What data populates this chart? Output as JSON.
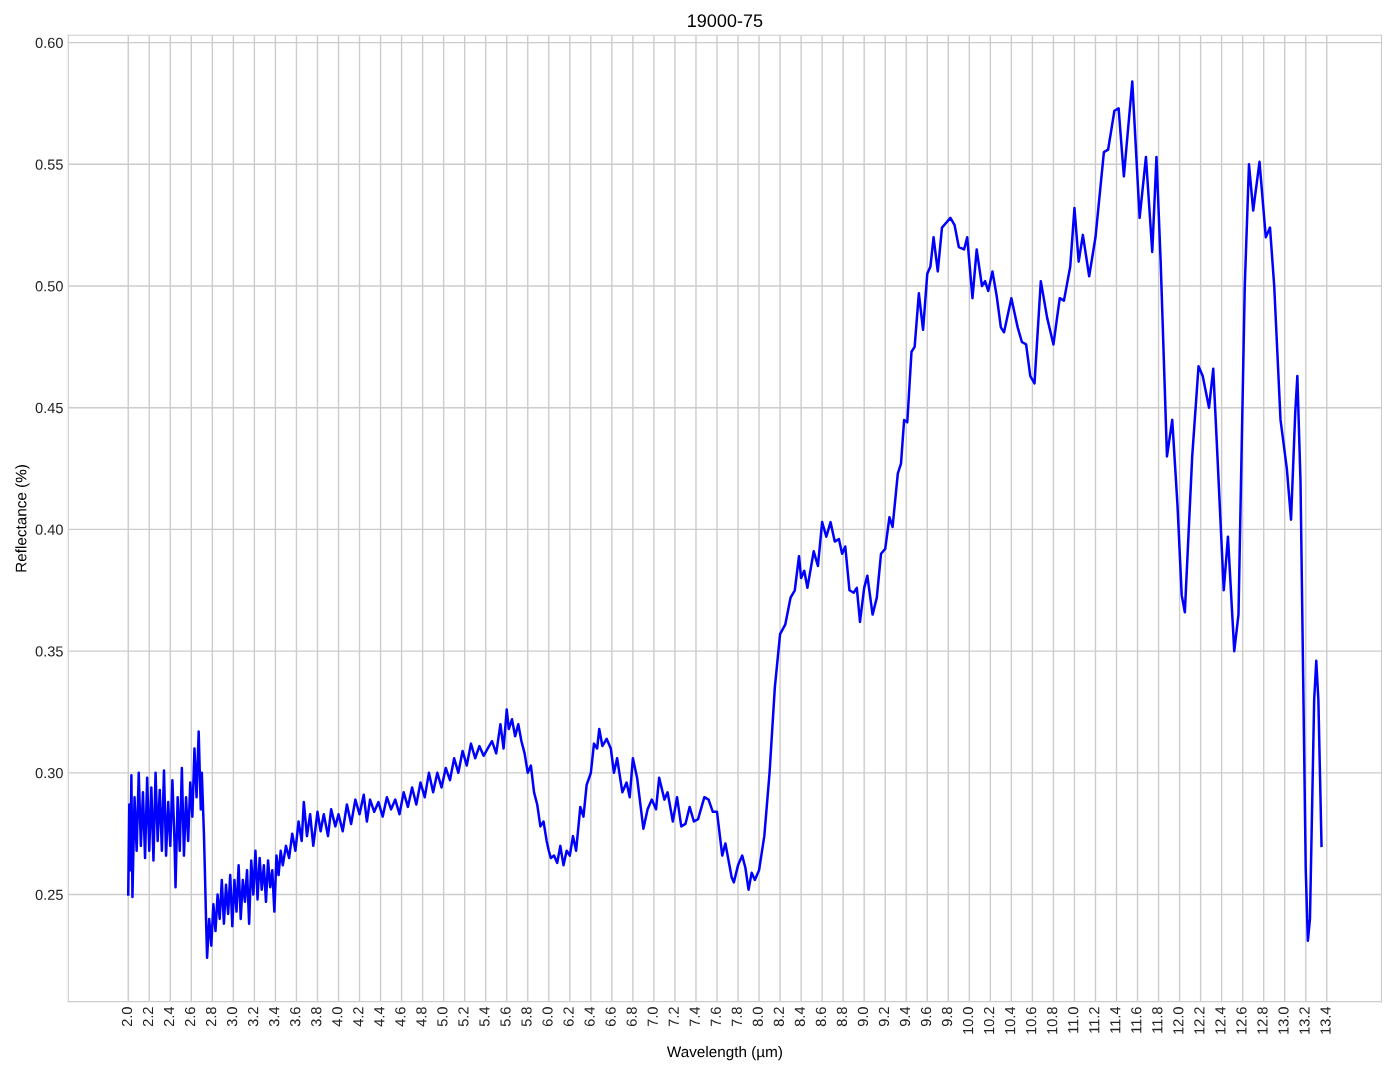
{
  "chart_data": {
    "type": "line",
    "title": "19000-75",
    "xlabel": "Wavelength (µm)",
    "ylabel": "Reflectance (%)",
    "xlim": [
      1.43,
      13.92
    ],
    "ylim": [
      0.206,
      0.603
    ],
    "xticks": [
      {
        "value": 2,
        "label": "2.0"
      },
      2.2,
      2.4,
      2.6,
      2.8,
      {
        "value": 3,
        "label": "3.0"
      },
      3.2,
      3.4,
      3.6,
      3.8,
      {
        "value": 4,
        "label": "4.0"
      },
      4.2,
      4.4,
      4.6,
      4.8,
      {
        "value": 5,
        "label": "5.0"
      },
      5.2,
      5.4,
      5.6,
      5.8,
      {
        "value": 6,
        "label": "6.0"
      },
      6.2,
      6.4,
      6.6,
      6.8,
      {
        "value": 7,
        "label": "7.0"
      },
      7.2,
      7.4,
      7.6,
      7.8,
      {
        "value": 8,
        "label": "8.0"
      },
      8.2,
      8.4,
      8.6,
      8.8,
      {
        "value": 9,
        "label": "9.0"
      },
      9.2,
      9.4,
      9.6,
      9.8,
      {
        "value": 10,
        "label": "10.0"
      },
      10.2,
      10.4,
      10.6,
      10.8,
      {
        "value": 11,
        "label": "11.0"
      },
      11.2,
      11.4,
      11.6,
      11.8,
      {
        "value": 12,
        "label": "12.0"
      },
      12.2,
      12.4,
      12.6,
      12.8,
      {
        "value": 13,
        "label": "13.0"
      },
      13.2,
      13.4
    ],
    "yticks": [
      {
        "value": 0.25,
        "label": "0.25"
      },
      {
        "value": 0.3,
        "label": "0.30"
      },
      {
        "value": 0.35,
        "label": "0.35"
      },
      {
        "value": 0.4,
        "label": "0.40"
      },
      {
        "value": 0.45,
        "label": "0.45"
      },
      {
        "value": 0.5,
        "label": "0.50"
      },
      {
        "value": 0.55,
        "label": "0.55"
      },
      {
        "value": 0.6,
        "label": "0.60"
      }
    ],
    "grid": true,
    "legend": false,
    "marker": "none",
    "line_style": "solid",
    "series": [
      {
        "color": "#0000ff",
        "x": [
          2.0,
          2.01,
          2.02,
          2.03,
          2.04,
          2.06,
          2.08,
          2.1,
          2.12,
          2.14,
          2.16,
          2.18,
          2.2,
          2.22,
          2.24,
          2.26,
          2.28,
          2.3,
          2.32,
          2.34,
          2.36,
          2.38,
          2.4,
          2.42,
          2.44,
          2.45,
          2.47,
          2.49,
          2.51,
          2.53,
          2.55,
          2.57,
          2.59,
          2.61,
          2.63,
          2.65,
          2.67,
          2.69,
          2.7,
          2.72,
          2.73,
          2.74,
          2.75,
          2.77,
          2.79,
          2.81,
          2.83,
          2.85,
          2.87,
          2.89,
          2.91,
          2.93,
          2.95,
          2.97,
          2.99,
          3.01,
          3.03,
          3.05,
          3.07,
          3.09,
          3.11,
          3.13,
          3.15,
          3.17,
          3.19,
          3.21,
          3.23,
          3.25,
          3.27,
          3.29,
          3.31,
          3.33,
          3.35,
          3.37,
          3.39,
          3.41,
          3.43,
          3.45,
          3.47,
          3.5,
          3.53,
          3.56,
          3.59,
          3.62,
          3.65,
          3.67,
          3.7,
          3.73,
          3.76,
          3.8,
          3.83,
          3.86,
          3.9,
          3.93,
          3.97,
          4.0,
          4.04,
          4.08,
          4.12,
          4.16,
          4.2,
          4.24,
          4.27,
          4.3,
          4.34,
          4.38,
          4.42,
          4.46,
          4.5,
          4.54,
          4.58,
          4.62,
          4.66,
          4.7,
          4.74,
          4.78,
          4.82,
          4.86,
          4.9,
          4.94,
          4.98,
          5.02,
          5.06,
          5.1,
          5.14,
          5.18,
          5.22,
          5.26,
          5.3,
          5.34,
          5.38,
          5.42,
          5.46,
          5.5,
          5.54,
          5.57,
          5.6,
          5.62,
          5.65,
          5.68,
          5.71,
          5.74,
          5.77,
          5.8,
          5.83,
          5.86,
          5.89,
          5.92,
          5.95,
          5.98,
          6.0,
          6.02,
          6.05,
          6.08,
          6.11,
          6.14,
          6.17,
          6.2,
          6.23,
          6.26,
          6.3,
          6.33,
          6.36,
          6.4,
          6.43,
          6.46,
          6.48,
          6.51,
          6.55,
          6.59,
          6.62,
          6.65,
          6.7,
          6.74,
          6.77,
          6.8,
          6.84,
          6.9,
          6.94,
          6.98,
          7.02,
          7.05,
          7.1,
          7.13,
          7.18,
          7.22,
          7.26,
          7.3,
          7.34,
          7.38,
          7.42,
          7.48,
          7.52,
          7.56,
          7.6,
          7.65,
          7.68,
          7.74,
          7.76,
          7.8,
          7.84,
          7.87,
          7.9,
          7.93,
          7.96,
          8.0,
          8.05,
          8.1,
          8.15,
          8.2,
          8.25,
          8.3,
          8.34,
          8.38,
          8.4,
          8.43,
          8.46,
          8.52,
          8.56,
          8.6,
          8.64,
          8.68,
          8.72,
          8.76,
          8.79,
          8.82,
          8.86,
          8.9,
          8.93,
          8.96,
          9.0,
          9.03,
          9.08,
          9.12,
          9.16,
          9.2,
          9.24,
          9.27,
          9.32,
          9.35,
          9.38,
          9.41,
          9.45,
          9.48,
          9.52,
          9.56,
          9.6,
          9.63,
          9.66,
          9.7,
          9.74,
          9.78,
          9.82,
          9.86,
          9.9,
          9.95,
          9.98,
          10.03,
          10.07,
          10.12,
          10.15,
          10.18,
          10.22,
          10.26,
          10.3,
          10.33,
          10.4,
          10.46,
          10.5,
          10.54,
          10.58,
          10.62,
          10.68,
          10.74,
          10.8,
          10.86,
          10.9,
          10.96,
          11.0,
          11.04,
          11.08,
          11.14,
          11.2,
          11.28,
          11.32,
          11.38,
          11.42,
          11.47,
          11.55,
          11.62,
          11.68,
          11.74,
          11.78,
          11.82,
          11.88,
          11.93,
          11.98,
          12.02,
          12.05,
          12.12,
          12.18,
          12.22,
          12.28,
          12.32,
          12.36,
          12.42,
          12.46,
          12.52,
          12.56,
          12.62,
          12.66,
          12.7,
          12.76,
          12.82,
          12.86,
          12.9,
          12.96,
          13.02,
          13.06,
          13.1,
          13.12,
          13.15,
          13.2,
          13.22,
          13.24,
          13.28,
          13.3,
          13.32,
          13.35
        ],
        "values": [
          0.25,
          0.287,
          0.26,
          0.299,
          0.249,
          0.29,
          0.268,
          0.3,
          0.27,
          0.292,
          0.265,
          0.298,
          0.268,
          0.294,
          0.264,
          0.3,
          0.272,
          0.293,
          0.268,
          0.301,
          0.266,
          0.288,
          0.27,
          0.297,
          0.272,
          0.253,
          0.29,
          0.268,
          0.302,
          0.266,
          0.29,
          0.272,
          0.296,
          0.282,
          0.31,
          0.29,
          0.317,
          0.285,
          0.3,
          0.275,
          0.258,
          0.24,
          0.224,
          0.24,
          0.229,
          0.246,
          0.235,
          0.25,
          0.24,
          0.256,
          0.238,
          0.254,
          0.242,
          0.258,
          0.237,
          0.256,
          0.243,
          0.262,
          0.24,
          0.256,
          0.247,
          0.26,
          0.238,
          0.264,
          0.25,
          0.268,
          0.248,
          0.265,
          0.252,
          0.262,
          0.247,
          0.264,
          0.253,
          0.26,
          0.243,
          0.266,
          0.258,
          0.268,
          0.262,
          0.27,
          0.265,
          0.275,
          0.268,
          0.28,
          0.272,
          0.288,
          0.274,
          0.283,
          0.27,
          0.284,
          0.276,
          0.283,
          0.274,
          0.285,
          0.278,
          0.283,
          0.276,
          0.287,
          0.279,
          0.289,
          0.283,
          0.291,
          0.28,
          0.289,
          0.284,
          0.288,
          0.282,
          0.29,
          0.285,
          0.289,
          0.283,
          0.292,
          0.286,
          0.294,
          0.287,
          0.296,
          0.29,
          0.3,
          0.292,
          0.3,
          0.294,
          0.302,
          0.297,
          0.306,
          0.3,
          0.309,
          0.303,
          0.312,
          0.306,
          0.311,
          0.307,
          0.31,
          0.313,
          0.308,
          0.32,
          0.31,
          0.326,
          0.318,
          0.322,
          0.315,
          0.32,
          0.313,
          0.308,
          0.3,
          0.303,
          0.292,
          0.287,
          0.278,
          0.28,
          0.272,
          0.268,
          0.265,
          0.266,
          0.263,
          0.27,
          0.262,
          0.268,
          0.266,
          0.274,
          0.268,
          0.286,
          0.282,
          0.295,
          0.3,
          0.312,
          0.31,
          0.318,
          0.311,
          0.314,
          0.31,
          0.3,
          0.306,
          0.292,
          0.296,
          0.29,
          0.306,
          0.298,
          0.277,
          0.285,
          0.289,
          0.285,
          0.298,
          0.289,
          0.292,
          0.28,
          0.29,
          0.278,
          0.279,
          0.286,
          0.28,
          0.281,
          0.29,
          0.289,
          0.284,
          0.284,
          0.266,
          0.271,
          0.257,
          0.255,
          0.262,
          0.266,
          0.261,
          0.252,
          0.259,
          0.256,
          0.26,
          0.274,
          0.3,
          0.335,
          0.357,
          0.361,
          0.372,
          0.375,
          0.389,
          0.38,
          0.383,
          0.376,
          0.391,
          0.385,
          0.403,
          0.397,
          0.403,
          0.395,
          0.396,
          0.39,
          0.393,
          0.375,
          0.374,
          0.376,
          0.362,
          0.376,
          0.381,
          0.365,
          0.372,
          0.39,
          0.392,
          0.405,
          0.401,
          0.423,
          0.427,
          0.445,
          0.444,
          0.473,
          0.475,
          0.497,
          0.482,
          0.505,
          0.508,
          0.52,
          0.506,
          0.524,
          0.526,
          0.528,
          0.525,
          0.516,
          0.515,
          0.52,
          0.495,
          0.515,
          0.5,
          0.502,
          0.498,
          0.506,
          0.496,
          0.483,
          0.481,
          0.495,
          0.483,
          0.477,
          0.476,
          0.463,
          0.46,
          0.502,
          0.487,
          0.476,
          0.495,
          0.494,
          0.508,
          0.532,
          0.51,
          0.521,
          0.504,
          0.52,
          0.555,
          0.556,
          0.572,
          0.573,
          0.545,
          0.584,
          0.528,
          0.553,
          0.514,
          0.553,
          0.51,
          0.43,
          0.445,
          0.41,
          0.373,
          0.366,
          0.43,
          0.467,
          0.463,
          0.45,
          0.466,
          0.43,
          0.375,
          0.397,
          0.35,
          0.365,
          0.5,
          0.55,
          0.531,
          0.551,
          0.52,
          0.524,
          0.5,
          0.445,
          0.425,
          0.404,
          0.448,
          0.463,
          0.42,
          0.26,
          0.231,
          0.24,
          0.33,
          0.346,
          0.33,
          0.27
        ]
      }
    ]
  }
}
